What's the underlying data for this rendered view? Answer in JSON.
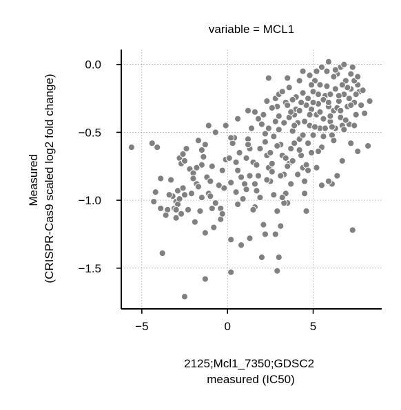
{
  "chart_data": {
    "type": "scatter",
    "title": "variable = MCL1",
    "xlabel_lines": [
      "2125;Mcl1_7350;GDSC2",
      "measured (IC50)"
    ],
    "ylabel_lines": [
      "Measured",
      "(CRISPR-Cas9 scaled log2 fold change)"
    ],
    "xlim": [
      -6.2,
      9.0
    ],
    "ylim": [
      -1.8,
      0.11
    ],
    "xticks": [
      -5,
      0,
      5
    ],
    "xtick_labels": [
      "−5",
      "0",
      "5"
    ],
    "yticks": [
      0.0,
      -0.5,
      -1.0,
      -1.5
    ],
    "ytick_labels": [
      "0.0",
      "−0.5",
      "−1.0",
      "−1.5"
    ],
    "grid": true,
    "marker_color": "#808080",
    "marker_edge_color": "#ffffff",
    "points": [
      [
        -5.6,
        -0.61
      ],
      [
        -4.4,
        -0.58
      ],
      [
        -4.1,
        -0.61
      ],
      [
        -3.9,
        -0.84
      ],
      [
        -4.3,
        -1.01
      ],
      [
        -4.2,
        -0.94
      ],
      [
        -3.9,
        -1.06
      ],
      [
        -3.8,
        -1.39
      ],
      [
        -3.5,
        -1.07
      ],
      [
        -3.3,
        -0.85
      ],
      [
        -3.2,
        -0.97
      ],
      [
        -3.1,
        -1.06
      ],
      [
        -3.0,
        -1.01
      ],
      [
        -2.9,
        -0.93
      ],
      [
        -2.8,
        -0.69
      ],
      [
        -2.7,
        -0.73
      ],
      [
        -2.6,
        -0.66
      ],
      [
        -2.5,
        -0.71
      ],
      [
        -2.4,
        -0.62
      ],
      [
        -2.9,
        -1.03
      ],
      [
        -2.7,
        -1.1
      ],
      [
        -2.5,
        -0.96
      ],
      [
        -2.3,
        -1.07
      ],
      [
        -2.2,
        -0.77
      ],
      [
        -2.0,
        -0.8
      ],
      [
        -1.8,
        -0.88
      ],
      [
        -1.7,
        -0.9
      ],
      [
        -1.5,
        -0.74
      ],
      [
        -1.6,
        -1.08
      ],
      [
        -1.3,
        -1.24
      ],
      [
        -1.7,
        -0.56
      ],
      [
        -1.5,
        -0.63
      ],
      [
        -1.3,
        -0.59
      ],
      [
        -1.2,
        -0.83
      ],
      [
        -1.1,
        -0.95
      ],
      [
        -1.0,
        -0.97
      ],
      [
        -0.9,
        -1.06
      ],
      [
        -0.7,
        -1.02
      ],
      [
        -0.4,
        -1.06
      ],
      [
        -0.4,
        -1.14
      ],
      [
        -0.3,
        -1.1
      ],
      [
        -0.2,
        -0.91
      ],
      [
        -0.1,
        -0.7
      ],
      [
        0.1,
        -0.69
      ],
      [
        0.2,
        -0.87
      ],
      [
        0.3,
        -0.58
      ],
      [
        0.4,
        -0.54
      ],
      [
        0.5,
        -0.72
      ],
      [
        0.5,
        -0.94
      ],
      [
        0.6,
        -0.78
      ],
      [
        0.7,
        -0.65
      ],
      [
        0.8,
        -0.83
      ],
      [
        0.9,
        -0.99
      ],
      [
        1.0,
        -0.88
      ],
      [
        1.1,
        -0.69
      ],
      [
        1.2,
        -0.55
      ],
      [
        1.3,
        -0.62
      ],
      [
        1.4,
        -0.47
      ],
      [
        1.5,
        -0.72
      ],
      [
        1.6,
        -0.88
      ],
      [
        1.7,
        -0.93
      ],
      [
        1.8,
        -0.82
      ],
      [
        1.9,
        -0.62
      ],
      [
        2.0,
        -0.44
      ],
      [
        2.1,
        -0.37
      ],
      [
        2.2,
        -0.51
      ],
      [
        2.3,
        -0.67
      ],
      [
        2.4,
        -0.76
      ],
      [
        2.5,
        -0.86
      ],
      [
        2.6,
        -0.79
      ],
      [
        2.7,
        -0.53
      ],
      [
        2.8,
        -0.42
      ],
      [
        2.9,
        -0.31
      ],
      [
        3.0,
        -0.48
      ],
      [
        3.1,
        -0.59
      ],
      [
        3.2,
        -0.67
      ],
      [
        3.3,
        -0.81
      ],
      [
        3.4,
        -0.95
      ],
      [
        3.5,
        -1.02
      ],
      [
        3.6,
        -0.73
      ],
      [
        3.7,
        -0.62
      ],
      [
        3.8,
        -0.49
      ],
      [
        3.9,
        -0.37
      ],
      [
        4.0,
        -0.24
      ],
      [
        4.1,
        -0.43
      ],
      [
        4.2,
        -0.55
      ],
      [
        4.3,
        -0.67
      ],
      [
        4.4,
        -0.76
      ],
      [
        4.5,
        -0.86
      ],
      [
        4.6,
        -0.74
      ],
      [
        4.7,
        -0.58
      ],
      [
        4.8,
        -0.45
      ],
      [
        4.9,
        -0.33
      ],
      [
        5.0,
        -0.2
      ],
      [
        5.1,
        -0.12
      ],
      [
        5.2,
        -0.37
      ],
      [
        5.3,
        -0.29
      ],
      [
        5.4,
        -0.47
      ],
      [
        5.5,
        -0.61
      ],
      [
        5.6,
        -0.4
      ],
      [
        5.7,
        -0.23
      ],
      [
        5.8,
        -0.16
      ],
      [
        5.9,
        -0.31
      ],
      [
        6.0,
        -0.42
      ],
      [
        6.1,
        -0.52
      ],
      [
        6.2,
        -0.34
      ],
      [
        6.3,
        -0.18
      ],
      [
        6.4,
        -0.07
      ],
      [
        6.5,
        -0.27
      ],
      [
        6.6,
        -0.39
      ],
      [
        6.7,
        -0.45
      ],
      [
        6.8,
        -0.22
      ],
      [
        6.9,
        -0.12
      ],
      [
        7.0,
        -0.31
      ],
      [
        7.1,
        -0.44
      ],
      [
        7.2,
        -0.18
      ],
      [
        7.3,
        -0.02
      ],
      [
        7.4,
        -0.28
      ],
      [
        7.5,
        -0.37
      ],
      [
        7.6,
        -0.15
      ],
      [
        7.7,
        -0.2
      ],
      [
        7.8,
        -0.3
      ],
      [
        7.9,
        -0.19
      ],
      [
        8.0,
        -0.36
      ],
      [
        8.2,
        -0.6
      ],
      [
        8.3,
        -0.27
      ],
      [
        7.6,
        -0.64
      ],
      [
        7.3,
        -1.22
      ],
      [
        6.1,
        -0.88
      ],
      [
        6.4,
        -0.82
      ],
      [
        2.0,
        -1.42
      ],
      [
        2.1,
        -1.18
      ],
      [
        2.2,
        -1.25
      ],
      [
        1.6,
        -1.05
      ],
      [
        1.5,
        -1.07
      ],
      [
        1.3,
        -1.28
      ],
      [
        0.8,
        -1.33
      ],
      [
        0.2,
        -1.53
      ],
      [
        0.2,
        -1.29
      ],
      [
        -1.3,
        -1.58
      ],
      [
        -2.5,
        -1.71
      ],
      [
        -1.9,
        -1.16
      ],
      [
        -0.8,
        -1.2
      ],
      [
        1.1,
        -0.92
      ],
      [
        1.9,
        -0.98
      ],
      [
        2.9,
        -1.52
      ],
      [
        3.0,
        -1.42
      ],
      [
        2.8,
        -1.25
      ],
      [
        3.1,
        -1.19
      ],
      [
        3.3,
        -1.02
      ],
      [
        3.2,
        -0.98
      ],
      [
        3.5,
        -0.75
      ],
      [
        3.8,
        -0.71
      ],
      [
        4.1,
        -0.81
      ],
      [
        4.6,
        -1.08
      ],
      [
        4.7,
        -0.78
      ],
      [
        5.2,
        -0.76
      ],
      [
        5.5,
        -0.89
      ],
      [
        5.9,
        -0.86
      ],
      [
        2.6,
        -0.73
      ],
      [
        2.3,
        -0.85
      ],
      [
        2.7,
        -0.96
      ],
      [
        2.9,
        -1.08
      ],
      [
        3.4,
        -0.69
      ],
      [
        4.2,
        -0.63
      ],
      [
        4.9,
        -0.65
      ],
      [
        5.3,
        -0.64
      ],
      [
        6.2,
        -0.56
      ],
      [
        6.7,
        -0.71
      ],
      [
        7.2,
        -0.58
      ],
      [
        2.6,
        -0.32
      ],
      [
        2.8,
        -0.25
      ],
      [
        3.0,
        -0.22
      ],
      [
        3.2,
        -0.2
      ],
      [
        3.4,
        -0.28
      ],
      [
        3.6,
        -0.17
      ],
      [
        3.8,
        -0.26
      ],
      [
        4.0,
        -0.33
      ],
      [
        4.2,
        -0.12
      ],
      [
        4.4,
        -0.21
      ],
      [
        4.6,
        -0.3
      ],
      [
        4.8,
        -0.08
      ],
      [
        5.0,
        -0.28
      ],
      [
        5.2,
        -0.05
      ],
      [
        5.4,
        -0.15
      ],
      [
        5.6,
        -0.26
      ],
      [
        5.8,
        -0.05
      ],
      [
        6.0,
        -0.22
      ],
      [
        6.2,
        -0.09
      ],
      [
        6.4,
        -0.32
      ],
      [
        6.6,
        -0.02
      ],
      [
        6.8,
        0.0
      ],
      [
        7.0,
        -0.17
      ],
      [
        7.2,
        -0.07
      ],
      [
        7.4,
        -0.12
      ],
      [
        7.6,
        -0.09
      ],
      [
        3.0,
        -0.38
      ],
      [
        3.3,
        -0.43
      ],
      [
        3.6,
        -0.39
      ],
      [
        3.9,
        -0.45
      ],
      [
        4.2,
        -0.34
      ],
      [
        4.5,
        -0.42
      ],
      [
        4.8,
        -0.37
      ],
      [
        5.1,
        -0.46
      ],
      [
        5.4,
        -0.35
      ],
      [
        5.7,
        -0.47
      ],
      [
        6.0,
        -0.38
      ],
      [
        6.3,
        -0.47
      ],
      [
        6.6,
        -0.34
      ],
      [
        6.9,
        -0.41
      ],
      [
        7.2,
        -0.3
      ],
      [
        7.5,
        -0.22
      ],
      [
        3.5,
        -0.3
      ],
      [
        3.7,
        -0.35
      ],
      [
        4.3,
        -0.28
      ],
      [
        4.7,
        -0.25
      ],
      [
        5.3,
        -0.22
      ],
      [
        5.9,
        -0.28
      ],
      [
        6.5,
        -0.23
      ],
      [
        7.1,
        -0.25
      ],
      [
        5.5,
        -0.02
      ],
      [
        5.9,
        0.02
      ],
      [
        6.3,
        -0.04
      ],
      [
        6.7,
        -0.15
      ],
      [
        4.4,
        -0.05
      ],
      [
        4.9,
        -0.15
      ],
      [
        1.6,
        -0.35
      ],
      [
        1.8,
        -0.4
      ],
      [
        2.3,
        -0.27
      ],
      [
        2.4,
        -0.47
      ],
      [
        1.2,
        -0.34
      ],
      [
        -0.1,
        -0.45
      ],
      [
        0.2,
        -0.54
      ],
      [
        -0.7,
        -0.5
      ],
      [
        -1.1,
        -0.45
      ],
      [
        -2.0,
        -0.84
      ],
      [
        -2.8,
        -0.99
      ],
      [
        -3.0,
        -1.07
      ],
      [
        -3.4,
        -0.96
      ],
      [
        -2.6,
        -0.91
      ],
      [
        -3.6,
        -1.11
      ],
      [
        -3.0,
        -1.13
      ],
      [
        -2.1,
        -0.95
      ],
      [
        -1.5,
        -0.98
      ],
      [
        -1.0,
        -0.86
      ],
      [
        -0.5,
        -0.89
      ],
      [
        0.6,
        -1.03
      ],
      [
        1.3,
        -0.82
      ],
      [
        1.7,
        -0.74
      ],
      [
        2.5,
        -0.65
      ],
      [
        3.9,
        -0.58
      ],
      [
        4.4,
        -0.52
      ],
      [
        5.0,
        -0.52
      ],
      [
        5.6,
        -0.53
      ],
      [
        6.1,
        -0.46
      ],
      [
        6.8,
        -0.48
      ],
      [
        7.4,
        -0.45
      ],
      [
        3.1,
        -0.82
      ],
      [
        3.7,
        -0.88
      ],
      [
        4.5,
        -0.95
      ],
      [
        2.4,
        -0.1
      ],
      [
        3.5,
        -0.1
      ],
      [
        1.2,
        -0.59
      ],
      [
        0.6,
        -0.4
      ],
      [
        -1.8,
        -0.76
      ],
      [
        -1.4,
        -0.68
      ],
      [
        -0.9,
        -0.75
      ],
      [
        -0.3,
        -0.78
      ],
      [
        2.2,
        -0.57
      ],
      [
        2.9,
        -0.6
      ]
    ]
  }
}
